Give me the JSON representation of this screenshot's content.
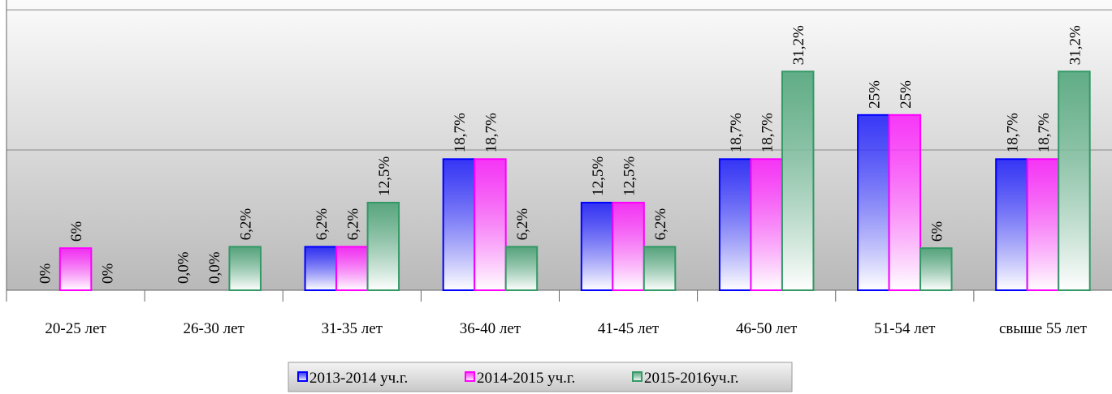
{
  "chart_data": {
    "type": "bar",
    "categories": [
      "20-25 лет",
      "26-30 лет",
      "31-35 лет",
      "36-40 лет",
      "41-45 лет",
      "46-50 лет",
      "51-54 лет",
      "свыше 55 лет"
    ],
    "series": [
      {
        "name": "2013-2014 уч.г.",
        "color": "#0000ff",
        "values": [
          0,
          0,
          6.2,
          18.7,
          12.5,
          18.7,
          25,
          18.7
        ],
        "value_labels": [
          "0%",
          "0,0%",
          "6,2%",
          "18,7%",
          "12,5%",
          "18,7%",
          "25%",
          "18,7%"
        ]
      },
      {
        "name": "2014-2015 уч.г.",
        "color": "#ff00ff",
        "values": [
          6,
          0,
          6.2,
          18.7,
          12.5,
          18.7,
          25,
          18.7
        ],
        "value_labels": [
          "6%",
          "0,0%",
          "6,2%",
          "18,7%",
          "12,5%",
          "18,7%",
          "25%",
          "18,7%"
        ]
      },
      {
        "name": "2015-2016уч.г.",
        "color": "#339966",
        "values": [
          0,
          6.2,
          12.5,
          6.2,
          6.2,
          31.2,
          6,
          31.2
        ],
        "value_labels": [
          "0%",
          "6,2%",
          "12,5%",
          "6,2%",
          "6,2%",
          "31,2%",
          "6%",
          "31,2%"
        ]
      }
    ],
    "ylim": [
      0,
      41.4
    ],
    "yticks": [
      0,
      20,
      40
    ],
    "grid": true,
    "legend": "bottom"
  }
}
